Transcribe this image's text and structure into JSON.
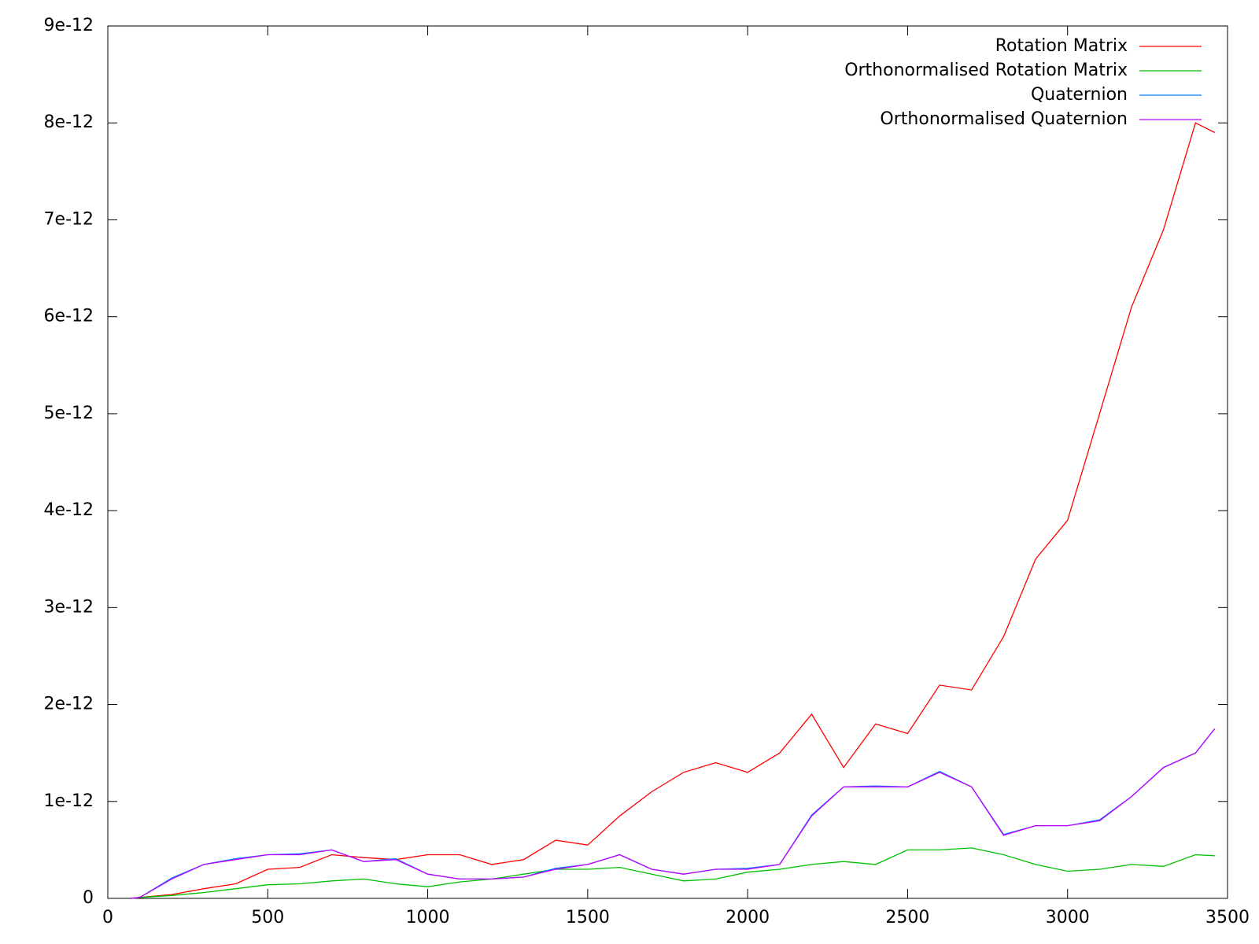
{
  "chart_data": {
    "type": "line",
    "x": [
      70,
      100,
      200,
      300,
      400,
      500,
      600,
      700,
      800,
      900,
      1000,
      1100,
      1200,
      1300,
      1400,
      1500,
      1600,
      1700,
      1800,
      1900,
      2000,
      2100,
      2200,
      2300,
      2400,
      2500,
      2600,
      2700,
      2800,
      2900,
      3000,
      3100,
      3200,
      3300,
      3400,
      3460
    ],
    "series": [
      {
        "name": "Rotation Matrix",
        "color": "#ff0000",
        "values": [
          0,
          1e-14,
          4e-14,
          1e-13,
          1.5e-13,
          3e-13,
          3.2e-13,
          4.5e-13,
          4.2e-13,
          4e-13,
          4.5e-13,
          4.5e-13,
          3.5e-13,
          4e-13,
          6e-13,
          5.5e-13,
          8.5e-13,
          1.1e-12,
          1.3e-12,
          1.4e-12,
          1.3e-12,
          1.5e-12,
          1.9e-12,
          1.35e-12,
          1.8e-12,
          1.7e-12,
          2.2e-12,
          2.15e-12,
          2.7e-12,
          3.5e-12,
          3.9e-12,
          5e-12,
          6.1e-12,
          6.9e-12,
          8e-12,
          7.9e-12
        ]
      },
      {
        "name": "Orthonormalised Rotation Matrix",
        "color": "#00c000",
        "values": [
          0,
          1e-14,
          3e-14,
          6e-14,
          1e-13,
          1.4e-13,
          1.5e-13,
          1.8e-13,
          2e-13,
          1.5e-13,
          1.2e-13,
          1.7e-13,
          2e-13,
          2.5e-13,
          3e-13,
          3e-13,
          3.2e-13,
          2.5e-13,
          1.8e-13,
          2e-13,
          2.7e-13,
          3e-13,
          3.5e-13,
          3.8e-13,
          3.5e-13,
          5e-13,
          5e-13,
          5.2e-13,
          4.5e-13,
          3.5e-13,
          2.8e-13,
          3e-13,
          3.5e-13,
          3.3e-13,
          4.5e-13,
          4.4e-13
        ]
      },
      {
        "name": "Quaternion",
        "color": "#0080ff",
        "values": [
          0,
          1e-14,
          2.1e-13,
          3.5e-13,
          4.1e-13,
          4.5e-13,
          4.6e-13,
          5e-13,
          3.8e-13,
          4.1e-13,
          2.5e-13,
          2e-13,
          2e-13,
          2.2e-13,
          3.1e-13,
          3.5e-13,
          4.5e-13,
          3e-13,
          2.5e-13,
          3e-13,
          3.1e-13,
          3.5e-13,
          8.6e-13,
          1.15e-12,
          1.16e-12,
          1.15e-12,
          1.31e-12,
          1.15e-12,
          6.6e-13,
          7.5e-13,
          7.5e-13,
          8.1e-13,
          1.05e-12,
          1.35e-12,
          1.5e-12,
          1.75e-12
        ]
      },
      {
        "name": "Orthonormalised Quaternion",
        "color": "#c000ff",
        "values": [
          0,
          1e-14,
          2e-13,
          3.5e-13,
          4e-13,
          4.5e-13,
          4.5e-13,
          5e-13,
          3.8e-13,
          4e-13,
          2.5e-13,
          2e-13,
          2e-13,
          2.2e-13,
          3e-13,
          3.5e-13,
          4.5e-13,
          3e-13,
          2.5e-13,
          3e-13,
          3e-13,
          3.5e-13,
          8.5e-13,
          1.15e-12,
          1.15e-12,
          1.15e-12,
          1.3e-12,
          1.15e-12,
          6.5e-13,
          7.5e-13,
          7.5e-13,
          8e-13,
          1.05e-12,
          1.35e-12,
          1.5e-12,
          1.75e-12
        ]
      }
    ],
    "xlim": [
      0,
      3500
    ],
    "xticks": [
      0,
      500,
      1000,
      1500,
      2000,
      2500,
      3000,
      3500
    ],
    "ylim": [
      0,
      9e-12
    ],
    "yticks": [
      0,
      1e-12,
      2e-12,
      3e-12,
      4e-12,
      5e-12,
      6e-12,
      7e-12,
      8e-12,
      9e-12
    ],
    "grid": false,
    "legend": "top-right"
  }
}
